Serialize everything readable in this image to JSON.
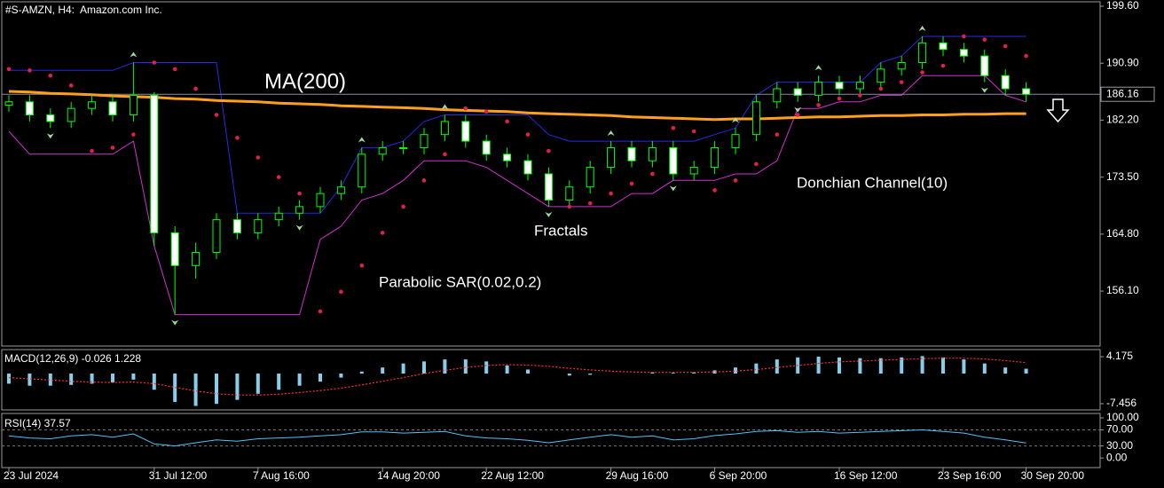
{
  "header": {
    "title": "#S-AMZN, H4:  Amazon.com Inc."
  },
  "chart_data": [
    {
      "type": "candlestick",
      "categories": [
        "23 Jul 2024",
        null,
        null,
        null,
        null,
        null,
        null,
        "31 Jul 12:00",
        null,
        null,
        null,
        null,
        "7 Aug 16:00",
        null,
        null,
        null,
        null,
        null,
        "14 Aug 20:00",
        null,
        null,
        null,
        null,
        "22 Aug 12:00",
        null,
        null,
        null,
        null,
        null,
        "29 Aug 16:00",
        null,
        null,
        null,
        null,
        "6 Sep 20:00",
        null,
        null,
        null,
        null,
        null,
        "16 Sep 12:00",
        null,
        null,
        null,
        null,
        "23 Sep 16:00",
        null,
        null,
        null,
        "30 Sep 20:00"
      ],
      "open": [
        184.5,
        185,
        183,
        182,
        184,
        185,
        183,
        186,
        165,
        160,
        162,
        167,
        165,
        167,
        168,
        169,
        171,
        172,
        177,
        178,
        178,
        180,
        182,
        179,
        177,
        176,
        174,
        170,
        172,
        175,
        178,
        176,
        178,
        174,
        175,
        178,
        180,
        185,
        187,
        186,
        188,
        187,
        188,
        190,
        191,
        194,
        193,
        192,
        189,
        187
      ],
      "high": [
        186,
        186,
        184,
        185,
        186,
        186,
        191,
        186.5,
        166,
        163.5,
        168,
        168,
        168,
        169,
        170,
        172,
        173,
        178,
        179,
        179,
        181,
        183,
        183,
        180,
        178,
        177,
        175,
        173,
        176,
        179,
        179,
        179,
        179,
        176,
        179,
        181,
        186,
        188,
        188,
        189,
        189,
        189,
        191,
        192,
        195,
        195,
        194,
        193,
        190,
        188
      ],
      "low": [
        183.5,
        182,
        181,
        181,
        183,
        182,
        182,
        163,
        152.5,
        158,
        161,
        164,
        164,
        166,
        167,
        168,
        170,
        171,
        176,
        177,
        177,
        179,
        178,
        176,
        175,
        173,
        169,
        169,
        171,
        174,
        175,
        175,
        173,
        173,
        174,
        177,
        179,
        184,
        185,
        185,
        186,
        186,
        187,
        189,
        190,
        192,
        191,
        188,
        186,
        185
      ],
      "close": [
        185,
        183,
        182,
        184,
        185,
        183,
        186,
        165,
        160,
        162,
        167,
        165,
        167,
        168,
        169,
        171,
        172,
        177,
        178,
        178,
        180,
        182,
        179,
        177,
        176,
        174,
        170,
        172,
        175,
        178,
        176,
        178,
        174,
        175,
        178,
        180,
        185,
        187,
        186,
        188,
        187,
        188,
        190,
        191,
        194,
        193,
        192,
        189,
        187,
        186.16
      ],
      "bull_color": "#00ff00",
      "bear_color": "#ffffff",
      "ylim": [
        147.71,
        200.28
      ],
      "yticks": [
        {
          "value": 199.6,
          "label": "199.60"
        },
        {
          "value": 190.9,
          "label": "190.90"
        },
        {
          "value": 182.2,
          "label": "182.20"
        },
        {
          "value": 173.5,
          "label": "173.50"
        },
        {
          "value": 164.8,
          "label": "164.80"
        },
        {
          "value": 156.1,
          "label": "156.10"
        }
      ],
      "last_price": 186.16,
      "ma": {
        "name": "MA(200)",
        "color": "#ffa01c",
        "values": [
          186.6,
          186.5,
          186.3,
          186.2,
          186.1,
          185.9,
          185.8,
          185.7,
          185.5,
          185.4,
          185.2,
          185.1,
          185.0,
          184.8,
          184.7,
          184.6,
          184.4,
          184.3,
          184.2,
          184.1,
          184.0,
          183.8,
          183.7,
          183.6,
          183.5,
          183.3,
          183.2,
          183.1,
          183.0,
          182.9,
          182.7,
          182.6,
          182.5,
          182.4,
          182.3,
          182.4,
          182.4,
          182.5,
          182.6,
          182.7,
          182.7,
          182.8,
          182.9,
          182.9,
          183.0,
          183.0,
          183.1,
          183.1,
          183.2,
          183.2
        ]
      },
      "sar": {
        "name": "Parabolic SAR(0.02,0.2)",
        "color": "#e0204a",
        "values": [
          190,
          189.8,
          189,
          187.5,
          177.5,
          178,
          180,
          191,
          190,
          187,
          183,
          179.5,
          176.5,
          173.5,
          171,
          153,
          156,
          160,
          165,
          169,
          173,
          177,
          184,
          183.5,
          182,
          180,
          177.5,
          169,
          169.5,
          171,
          172.5,
          174,
          181,
          180.5,
          171.5,
          173,
          175.5,
          180,
          183,
          184.5,
          185.5,
          186,
          187,
          188,
          189.5,
          190.5,
          195,
          194.5,
          193.5,
          192
        ]
      },
      "donchian": {
        "name": "Donchian Channel(10)",
        "upper": {
          "color": "#2828e8",
          "values": [
            189.8,
            189.8,
            189.8,
            189.8,
            189.8,
            189.8,
            191,
            191,
            191,
            191,
            191,
            168,
            168,
            168,
            168,
            168,
            172,
            178,
            178,
            179,
            182,
            183,
            183,
            183,
            183,
            183,
            180,
            179,
            179,
            179,
            179,
            179,
            179,
            179,
            180,
            181,
            186,
            188,
            188,
            188,
            188,
            188,
            191,
            192,
            195,
            195,
            195,
            195,
            195,
            195
          ]
        },
        "lower": {
          "color": "#d030d0",
          "values": [
            180.5,
            177,
            177,
            177,
            177,
            177,
            179,
            163,
            152.5,
            152.5,
            152.5,
            152.5,
            152.5,
            152.5,
            152.5,
            164,
            166,
            170,
            171,
            173,
            176,
            176,
            176,
            175,
            173,
            171,
            169,
            169,
            169,
            169,
            171,
            171,
            173,
            173,
            173,
            174,
            174,
            176,
            184,
            184,
            185,
            185,
            186,
            186,
            189,
            189,
            189,
            189,
            186,
            185
          ]
        }
      },
      "fractals": {
        "name": "Fractals",
        "color": "#9fdf9f",
        "up": [
          null,
          null,
          null,
          null,
          null,
          null,
          191,
          null,
          null,
          null,
          null,
          null,
          null,
          null,
          null,
          null,
          null,
          178,
          null,
          null,
          null,
          183,
          null,
          null,
          null,
          null,
          null,
          null,
          null,
          179,
          null,
          null,
          null,
          null,
          null,
          181,
          null,
          null,
          null,
          189,
          null,
          null,
          null,
          null,
          195,
          null,
          null,
          null,
          null,
          null
        ],
        "down": [
          null,
          null,
          181,
          null,
          null,
          null,
          null,
          null,
          152.5,
          null,
          null,
          null,
          null,
          null,
          167,
          null,
          null,
          null,
          null,
          null,
          null,
          null,
          null,
          null,
          null,
          null,
          169,
          null,
          null,
          null,
          null,
          null,
          173,
          null,
          null,
          null,
          null,
          null,
          185,
          null,
          null,
          null,
          null,
          null,
          null,
          null,
          null,
          188,
          null,
          null
        ]
      }
    },
    {
      "type": "macd",
      "label": "MACD(12,26,9) -0.026 1.228",
      "ylim": [
        -8.99,
        5.93
      ],
      "yticks": [
        4.175,
        -7.456
      ],
      "series": [
        {
          "color": "#87ceeb",
          "values": [
            -2.5,
            -3,
            -3,
            -2.8,
            -2.5,
            -2.2,
            -1.5,
            -4,
            -7,
            -8,
            -7.5,
            -6.5,
            -5,
            -4,
            -3,
            -2,
            -1,
            0.5,
            1.5,
            2.5,
            3,
            3.5,
            3.5,
            3,
            2,
            1,
            0,
            -0.5,
            -0.3,
            0,
            0,
            0.3,
            0.2,
            0.3,
            0.8,
            1.5,
            2.5,
            3.5,
            4,
            4.2,
            4,
            3.8,
            3.8,
            4,
            4.3,
            4,
            3.5,
            2.5,
            1.5,
            1.2
          ]
        },
        {
          "color": "#ff3030",
          "values": [
            -1,
            -1.3,
            -1.6,
            -1.9,
            -2.1,
            -2.2,
            -2.1,
            -2.5,
            -3.4,
            -4.3,
            -5,
            -5.3,
            -5.3,
            -5.1,
            -4.7,
            -4.2,
            -3.6,
            -2.8,
            -1.9,
            -1,
            0,
            0.8,
            1.5,
            2,
            2.2,
            2.1,
            1.8,
            1.3,
            0.9,
            0.6,
            0.4,
            0.3,
            0.3,
            0.3,
            0.4,
            0.6,
            1,
            1.5,
            2,
            2.5,
            2.9,
            3.1,
            3.3,
            3.5,
            3.7,
            3.8,
            3.8,
            3.6,
            3.2,
            2.7
          ]
        }
      ]
    },
    {
      "type": "rsi",
      "label": "RSI(14) 37.57",
      "ylim": [
        -24,
        111
      ],
      "yticks": [
        {
          "value": 100,
          "label": "100.00"
        },
        {
          "value": 70,
          "label": "70.00"
        },
        {
          "value": 30,
          "label": "30.00"
        },
        {
          "value": 0,
          "label": "0.00"
        }
      ],
      "color": "#4fc3f7",
      "values": [
        55,
        50,
        48,
        55,
        58,
        52,
        60,
        35,
        30,
        38,
        45,
        42,
        48,
        50,
        52,
        55,
        58,
        65,
        65,
        62,
        64,
        66,
        55,
        50,
        48,
        44,
        38,
        45,
        52,
        58,
        52,
        55,
        45,
        48,
        56,
        60,
        66,
        68,
        64,
        66,
        62,
        64,
        66,
        68,
        70,
        66,
        62,
        52,
        45,
        37.57
      ]
    }
  ]
}
